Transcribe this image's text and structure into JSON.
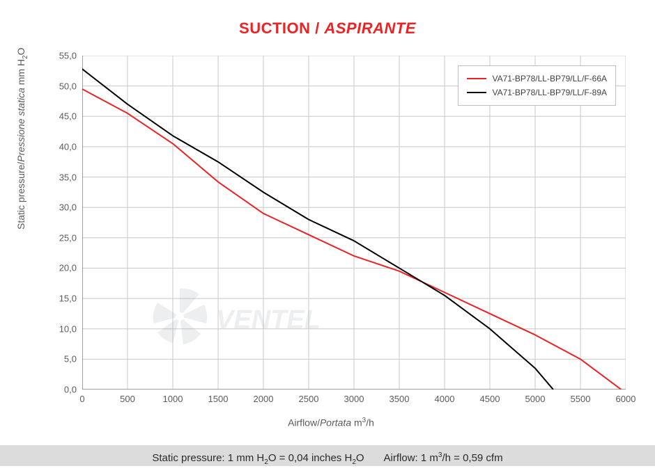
{
  "title": {
    "main": "SUCTION",
    "sep": " / ",
    "ital": "ASPIRANTE"
  },
  "chart": {
    "type": "line",
    "background_color": "#ffffff",
    "grid_color": "#c8c8c8",
    "axis_color": "#808080",
    "tick_font_size": 13,
    "label_font_size": 14,
    "label_color": "#5b5b5b",
    "x": {
      "label_plain": "Airflow",
      "label_sep": "/",
      "label_ital": "Portata",
      "unit_prefix": "  m",
      "unit_sup": "3",
      "unit_suffix": "/h",
      "min": 0,
      "max": 6000,
      "step": 500
    },
    "y": {
      "label_plain": "Static pressure",
      "label_sep": "/",
      "label_ital": "Pressione statica",
      "unit_prefix": "  mm  H",
      "unit_sub": "2",
      "unit_suffix": "O",
      "min": 0,
      "max": 55,
      "step": 5
    },
    "series": [
      {
        "name": "VA71-BP78/LL-BP79/LL/F-66A",
        "color": "#ed2224",
        "line_width": 2,
        "points": [
          [
            0,
            49.5
          ],
          [
            500,
            45.5
          ],
          [
            1000,
            40.5
          ],
          [
            1500,
            34.2
          ],
          [
            2000,
            29.0
          ],
          [
            2500,
            25.5
          ],
          [
            3000,
            22.0
          ],
          [
            3500,
            19.5
          ],
          [
            4000,
            16.0
          ],
          [
            4500,
            12.5
          ],
          [
            5000,
            9.0
          ],
          [
            5500,
            5.0
          ],
          [
            5950,
            0.0
          ]
        ]
      },
      {
        "name": "VA71-BP78/LL-BP79/LL/F-89A",
        "color": "#000000",
        "line_width": 2,
        "points": [
          [
            0,
            52.8
          ],
          [
            500,
            47.0
          ],
          [
            1000,
            41.8
          ],
          [
            1500,
            37.5
          ],
          [
            2000,
            32.5
          ],
          [
            2500,
            28.0
          ],
          [
            3000,
            24.5
          ],
          [
            3500,
            20.0
          ],
          [
            4000,
            15.5
          ],
          [
            4500,
            10.0
          ],
          [
            5000,
            3.5
          ],
          [
            5200,
            0.0
          ]
        ]
      }
    ]
  },
  "footer": {
    "sp_label": "Static pressure: 1 mm H",
    "sp_sub": "2",
    "sp_mid": "O = 0,04 inches H",
    "sp_sub2": "2",
    "sp_end": "O",
    "af_label": "Airflow: 1 m",
    "af_sup": "3",
    "af_end": "/h = 0,59 cfm"
  },
  "watermark": {
    "text": "VENTEL",
    "color": "#9aa7ad"
  }
}
